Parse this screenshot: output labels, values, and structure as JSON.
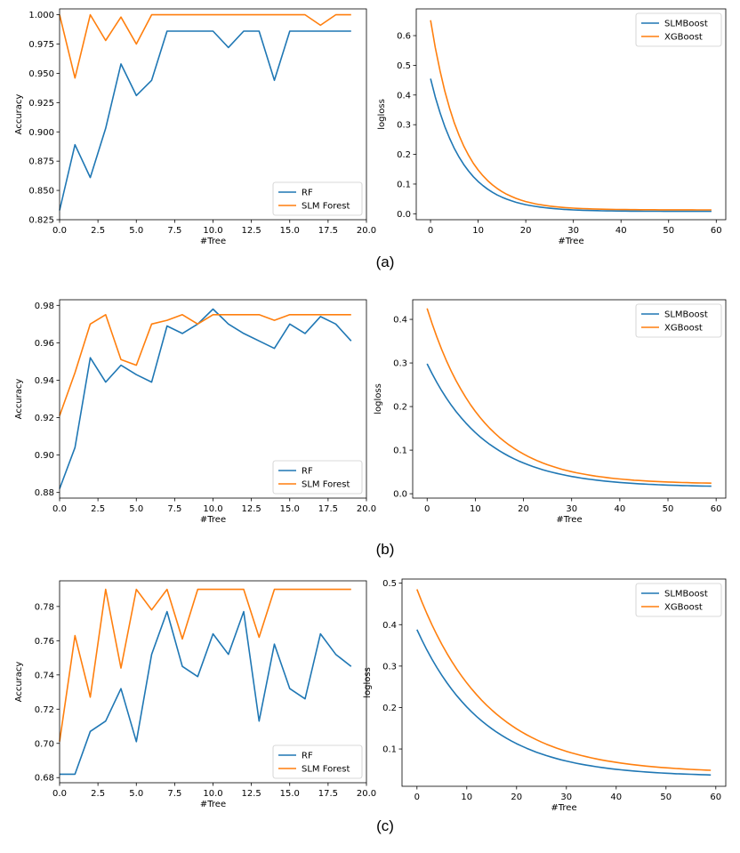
{
  "captions": [
    "(a)",
    "(b)",
    "(c)"
  ],
  "colors": {
    "blue": "#1f77b4",
    "orange": "#ff7f0e"
  },
  "chart_data": [
    {
      "type": "line",
      "panel": "a-left",
      "xlabel": "#Tree",
      "ylabel": "Accuracy",
      "xlim": [
        0,
        20
      ],
      "ylim": [
        0.825,
        1.005
      ],
      "xticks": [
        0,
        2.5,
        5,
        7.5,
        10,
        12.5,
        15,
        17.5,
        20
      ],
      "xtick_labels": [
        "0.0",
        "2.5",
        "5.0",
        "7.5",
        "10.0",
        "12.5",
        "15.0",
        "17.5",
        "20.0"
      ],
      "yticks": [
        0.825,
        0.85,
        0.875,
        0.9,
        0.925,
        0.95,
        0.975,
        1.0
      ],
      "ytick_labels": [
        "0.825",
        "0.850",
        "0.875",
        "0.900",
        "0.925",
        "0.950",
        "0.975",
        "1.000"
      ],
      "legend_position": "bottom-right",
      "x": [
        0,
        1,
        2,
        3,
        4,
        5,
        6,
        7,
        8,
        9,
        10,
        11,
        12,
        13,
        14,
        15,
        16,
        17,
        18,
        19
      ],
      "series": [
        {
          "name": "RF",
          "color": "#1f77b4",
          "values": [
            0.833,
            0.889,
            0.861,
            0.903,
            0.958,
            0.931,
            0.944,
            0.986,
            0.986,
            0.986,
            0.986,
            0.972,
            0.986,
            0.986,
            0.944,
            0.986,
            0.986,
            0.986,
            0.986,
            0.986
          ]
        },
        {
          "name": "SLM Forest",
          "color": "#ff7f0e",
          "values": [
            1.0,
            0.946,
            1.0,
            0.978,
            0.998,
            0.975,
            1.0,
            1.0,
            1.0,
            1.0,
            1.0,
            1.0,
            1.0,
            1.0,
            1.0,
            1.0,
            1.0,
            0.991,
            1.0,
            1.0
          ]
        }
      ]
    },
    {
      "type": "line",
      "panel": "a-right",
      "xlabel": "#Tree",
      "ylabel": "logloss",
      "xlim": [
        -3,
        62
      ],
      "ylim": [
        -0.02,
        0.69
      ],
      "xticks": [
        0,
        10,
        20,
        30,
        40,
        50,
        60
      ],
      "xtick_labels": [
        "0",
        "10",
        "20",
        "30",
        "40",
        "50",
        "60"
      ],
      "yticks": [
        0.0,
        0.1,
        0.2,
        0.3,
        0.4,
        0.5,
        0.6
      ],
      "ytick_labels": [
        "0.0",
        "0.1",
        "0.2",
        "0.3",
        "0.4",
        "0.5",
        "0.6"
      ],
      "legend_position": "top-right",
      "decay": true,
      "n_points": 60,
      "series": [
        {
          "name": "SLMBoost",
          "color": "#1f77b4",
          "start": 0.455,
          "end": 0.008,
          "rate": 4.4
        },
        {
          "name": "XGBoost",
          "color": "#ff7f0e",
          "start": 0.652,
          "end": 0.013,
          "rate": 4.6
        }
      ]
    },
    {
      "type": "line",
      "panel": "b-left",
      "xlabel": "#Tree",
      "ylabel": "Accuracy",
      "xlim": [
        0,
        20
      ],
      "ylim": [
        0.877,
        0.983
      ],
      "xticks": [
        0,
        2.5,
        5,
        7.5,
        10,
        12.5,
        15,
        17.5,
        20
      ],
      "xtick_labels": [
        "0.0",
        "2.5",
        "5.0",
        "7.5",
        "10.0",
        "12.5",
        "15.0",
        "17.5",
        "20.0"
      ],
      "yticks": [
        0.88,
        0.9,
        0.92,
        0.94,
        0.96,
        0.98
      ],
      "ytick_labels": [
        "0.88",
        "0.90",
        "0.92",
        "0.94",
        "0.96",
        "0.98"
      ],
      "legend_position": "bottom-right",
      "x": [
        0,
        1,
        2,
        3,
        4,
        5,
        6,
        7,
        8,
        9,
        10,
        11,
        12,
        13,
        14,
        15,
        16,
        17,
        18,
        19
      ],
      "series": [
        {
          "name": "RF",
          "color": "#1f77b4",
          "values": [
            0.882,
            0.904,
            0.952,
            0.939,
            0.948,
            0.943,
            0.939,
            0.969,
            0.965,
            0.97,
            0.978,
            0.97,
            0.965,
            0.961,
            0.957,
            0.97,
            0.965,
            0.974,
            0.97,
            0.961
          ]
        },
        {
          "name": "SLM Forest",
          "color": "#ff7f0e",
          "values": [
            0.921,
            0.944,
            0.97,
            0.975,
            0.951,
            0.948,
            0.97,
            0.972,
            0.975,
            0.97,
            0.975,
            0.975,
            0.975,
            0.975,
            0.972,
            0.975,
            0.975,
            0.975,
            0.975,
            0.975
          ]
        }
      ]
    },
    {
      "type": "line",
      "panel": "b-right",
      "xlabel": "#Tree",
      "ylabel": "logloss",
      "xlim": [
        -3,
        62
      ],
      "ylim": [
        -0.01,
        0.445
      ],
      "xticks": [
        0,
        10,
        20,
        30,
        40,
        50,
        60
      ],
      "xtick_labels": [
        "0",
        "10",
        "20",
        "30",
        "40",
        "50",
        "60"
      ],
      "yticks": [
        0.0,
        0.1,
        0.2,
        0.3,
        0.4
      ],
      "ytick_labels": [
        "0.0",
        "0.1",
        "0.2",
        "0.3",
        "0.4"
      ],
      "legend_position": "top-right",
      "decay": true,
      "n_points": 60,
      "series": [
        {
          "name": "SLMBoost",
          "color": "#1f77b4",
          "start": 0.298,
          "end": 0.015,
          "rate": 2.4
        },
        {
          "name": "XGBoost",
          "color": "#ff7f0e",
          "start": 0.425,
          "end": 0.022,
          "rate": 2.6
        }
      ]
    },
    {
      "type": "line",
      "panel": "c-left",
      "xlabel": "#Tree",
      "ylabel": "Accuracy",
      "xlim": [
        0,
        20
      ],
      "ylim": [
        0.677,
        0.795
      ],
      "xticks": [
        0,
        2.5,
        5,
        7.5,
        10,
        12.5,
        15,
        17.5,
        20
      ],
      "xtick_labels": [
        "0.0",
        "2.5",
        "5.0",
        "7.5",
        "10.0",
        "12.5",
        "15.0",
        "17.5",
        "20.0"
      ],
      "yticks": [
        0.68,
        0.7,
        0.72,
        0.74,
        0.76,
        0.78
      ],
      "ytick_labels": [
        "0.68",
        "0.70",
        "0.72",
        "0.74",
        "0.76",
        "0.78"
      ],
      "legend_position": "bottom-right",
      "x": [
        0,
        1,
        2,
        3,
        4,
        5,
        6,
        7,
        8,
        9,
        10,
        11,
        12,
        13,
        14,
        15,
        16,
        17,
        18,
        19
      ],
      "series": [
        {
          "name": "RF",
          "color": "#1f77b4",
          "values": [
            0.682,
            0.682,
            0.707,
            0.713,
            0.732,
            0.701,
            0.752,
            0.777,
            0.745,
            0.739,
            0.764,
            0.752,
            0.777,
            0.713,
            0.758,
            0.732,
            0.726,
            0.764,
            0.752,
            0.745
          ]
        },
        {
          "name": "SLM Forest",
          "color": "#ff7f0e",
          "values": [
            0.701,
            0.763,
            0.727,
            0.79,
            0.744,
            0.79,
            0.778,
            0.79,
            0.761,
            0.79,
            0.79,
            0.79,
            0.79,
            0.762,
            0.79,
            0.79,
            0.79,
            0.79,
            0.79,
            0.79
          ]
        }
      ]
    },
    {
      "type": "line",
      "panel": "c-right",
      "xlabel": "#Tree",
      "ylabel": "logloss",
      "xlim": [
        -3,
        62
      ],
      "ylim": [
        0.01,
        0.51
      ],
      "xticks": [
        0,
        10,
        20,
        30,
        40,
        50,
        60
      ],
      "xtick_labels": [
        "0",
        "10",
        "20",
        "30",
        "40",
        "50",
        "60"
      ],
      "yticks": [
        0.1,
        0.2,
        0.3,
        0.4,
        0.5
      ],
      "ytick_labels": [
        "0.1",
        "0.2",
        "0.3",
        "0.4",
        "0.5"
      ],
      "legend_position": "top-right",
      "decay": true,
      "n_points": 60,
      "series": [
        {
          "name": "SLMBoost",
          "color": "#1f77b4",
          "start": 0.388,
          "end": 0.033,
          "rate": 2.2
        },
        {
          "name": "XGBoost",
          "color": "#ff7f0e",
          "start": 0.485,
          "end": 0.042,
          "rate": 2.1
        }
      ]
    }
  ]
}
